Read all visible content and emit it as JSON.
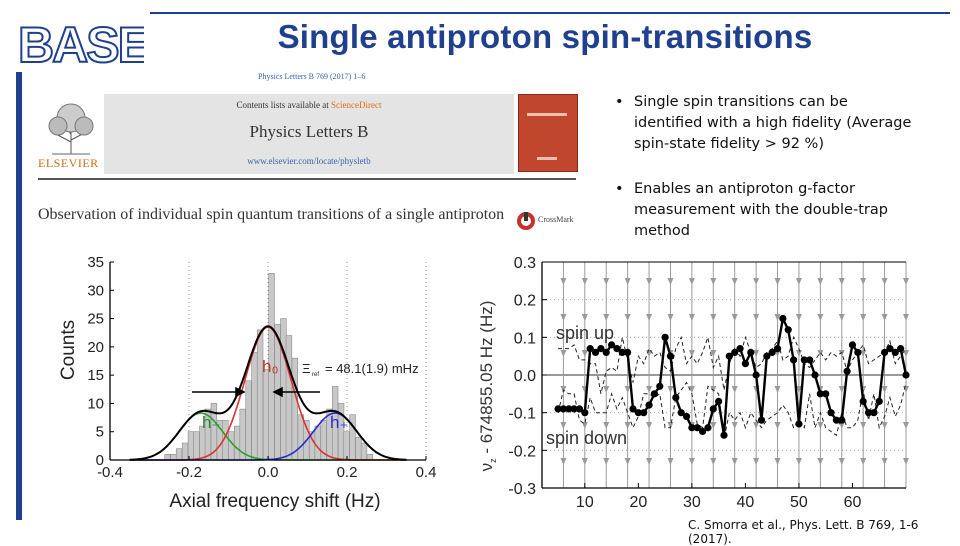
{
  "header": {
    "logo_text": "BASE",
    "title": "Single antiproton spin-transitions",
    "accent_color": "#1f3f8f"
  },
  "paper": {
    "journal_ref": "Physics Letters B 769 (2017) 1–6",
    "contents_prefix": "Contents lists available at ",
    "contents_link": "ScienceDirect",
    "journal_name": "Physics Letters B",
    "journal_url": "www.elsevier.com/locate/physletb",
    "publisher": "ELSEVIER",
    "title": "Observation of individual spin quantum transitions of a single antiproton",
    "crossmark": "CrossMark",
    "cover_icon": "journal-cover-icon",
    "crossmark_icon": "crossmark-icon"
  },
  "bullets": [
    {
      "symbol": "•",
      "text": "Single spin transitions can be identified with a high fidelity (Average spin-state fidelity > 92 %)"
    },
    {
      "symbol": "•",
      "text": "Enables an antiproton g-factor measurement with the double-trap method"
    }
  ],
  "citation": "C. Smorra et al., Phys. Lett. B 769, 1-6 (2017).",
  "chart_data": [
    {
      "type": "bar",
      "xlabel": "Axial frequency shift (Hz)",
      "ylabel": "Counts",
      "xlim": [
        -0.4,
        0.4
      ],
      "ylim": [
        0,
        35
      ],
      "xticks": [
        "-0.4",
        "-0.2",
        "0.0",
        "0.2",
        "0.4"
      ],
      "yticks": [
        "0",
        "5",
        "10",
        "15",
        "20",
        "25",
        "30",
        "35"
      ],
      "bar_width": 0.0146,
      "bins_x": [
        -0.254,
        -0.239,
        -0.225,
        -0.21,
        -0.195,
        -0.181,
        -0.166,
        -0.152,
        -0.137,
        -0.122,
        -0.108,
        -0.093,
        -0.078,
        -0.064,
        -0.049,
        -0.034,
        -0.02,
        -0.005,
        0.009,
        0.024,
        0.039,
        0.053,
        0.068,
        0.083,
        0.097,
        0.112,
        0.126,
        0.141,
        0.156,
        0.17,
        0.185,
        0.199,
        0.214,
        0.229,
        0.243,
        0.258
      ],
      "counts": [
        1,
        1,
        2,
        3,
        5,
        5,
        6,
        9,
        10,
        7,
        7,
        5,
        6,
        9,
        14,
        19,
        23,
        16,
        33,
        24,
        25,
        22,
        18,
        8,
        7,
        5,
        6,
        7,
        9,
        13,
        10,
        5,
        8,
        4,
        3,
        1
      ],
      "curves": [
        {
          "name": "h-",
          "color": "#2aa02a",
          "center": -0.17,
          "amp": 8.3,
          "sigma": 0.055
        },
        {
          "name": "h0",
          "color": "#e03030",
          "center": 0.0,
          "amp": 23.5,
          "sigma": 0.058
        },
        {
          "name": "h+",
          "color": "#2a2ad0",
          "center": 0.17,
          "amp": 8.3,
          "sigma": 0.055
        },
        {
          "name": "sum",
          "color": "#000000",
          "center": null,
          "amp": null,
          "sigma": null
        }
      ],
      "annotations": {
        "h0": "h₀",
        "hminus": "h₋",
        "hplus": "h₊",
        "xi_label": "Ξ",
        "xi_sub": "ref",
        "xi_value": "= 48.1(1.9) mHz"
      }
    },
    {
      "type": "line",
      "xlabel": "",
      "ylabel_prefix": "ν",
      "ylabel_sub": "z",
      "ylabel_rest": " - 674855.05 Hz  (Hz)",
      "xlim": [
        2,
        70
      ],
      "ylim": [
        -0.3,
        0.3
      ],
      "xticks": [
        "10",
        "20",
        "30",
        "40",
        "50",
        "60"
      ],
      "yticks": [
        "0.3",
        "0.2",
        "0.1",
        "0.0",
        "-0.1",
        "-0.2",
        "-0.3"
      ],
      "labels": {
        "spin_up": "spin up",
        "spin_down": "spin down"
      },
      "arrow_columns": [
        6,
        10,
        14,
        18,
        22,
        26,
        30,
        34,
        38,
        42,
        46,
        50,
        54,
        58,
        62,
        66,
        70
      ],
      "x": [
        5,
        6,
        7,
        8,
        9,
        10,
        11,
        12,
        13,
        14,
        15,
        16,
        17,
        18,
        19,
        20,
        21,
        22,
        23,
        24,
        25,
        26,
        27,
        28,
        29,
        30,
        31,
        32,
        33,
        34,
        35,
        36,
        37,
        38,
        39,
        40,
        41,
        42,
        43,
        44,
        45,
        46,
        47,
        48,
        49,
        50,
        51,
        52,
        53,
        54,
        55,
        56,
        57,
        58,
        59,
        60,
        61,
        62,
        63,
        64,
        65,
        66,
        67,
        68,
        69,
        70
      ],
      "y": [
        -0.09,
        -0.09,
        -0.09,
        -0.09,
        -0.09,
        -0.1,
        0.07,
        0.06,
        0.07,
        0.06,
        0.08,
        0.07,
        0.06,
        0.06,
        -0.09,
        -0.1,
        -0.1,
        -0.08,
        -0.05,
        -0.03,
        0.1,
        0.05,
        -0.06,
        -0.1,
        -0.11,
        -0.14,
        -0.14,
        -0.15,
        -0.14,
        -0.09,
        -0.07,
        -0.16,
        0.05,
        0.06,
        0.07,
        0.03,
        0.06,
        0.0,
        -0.12,
        0.05,
        0.06,
        0.07,
        0.15,
        0.12,
        0.04,
        -0.13,
        0.04,
        0.04,
        0.0,
        -0.05,
        -0.05,
        -0.1,
        -0.12,
        -0.12,
        0.01,
        0.08,
        0.06,
        -0.07,
        -0.1,
        -0.1,
        -0.07,
        0.06,
        0.07,
        0.06,
        0.07,
        0.0
      ],
      "upper_threshold": [
        0.07,
        0.07,
        0.07,
        0.08,
        0.04,
        0.04,
        0.03,
        0.03,
        -0.05,
        0.01,
        0.02,
        0.01,
        0.1,
        0.04,
        -0.02,
        0.05,
        0.03,
        0.07,
        0.05,
        0.06,
        0.02,
        0.01,
        0.07,
        0.1,
        0.03,
        0.05,
        0.03,
        0.06,
        0.1,
        0.02,
        0.05,
        -0.04,
        0.03,
        0.07,
        0.05,
        0.1,
        0.06,
        0.02,
        0.03,
        0.06,
        0.07,
        0.09,
        0.04,
        0.05,
        0.1,
        0.07,
        0.03,
        0.02,
        0.04,
        0.06,
        0.04,
        0.06,
        0.05,
        0.06,
        0.01,
        0.04,
        0.06,
        0.08,
        0.03,
        0.04,
        0.05,
        0.06,
        0.09,
        0.03,
        0.05,
        0.07
      ],
      "lower_threshold": [
        -0.1,
        -0.04,
        -0.05,
        -0.05,
        -0.12,
        -0.13,
        -0.06,
        -0.1,
        -0.1,
        -0.1,
        -0.05,
        -0.09,
        -0.06,
        -0.1,
        -0.14,
        -0.11,
        -0.05,
        -0.05,
        -0.06,
        -0.05,
        -0.14,
        -0.14,
        -0.06,
        -0.04,
        -0.02,
        -0.05,
        -0.13,
        -0.14,
        -0.03,
        -0.04,
        -0.05,
        -0.17,
        -0.1,
        -0.12,
        -0.1,
        -0.14,
        -0.1,
        -0.12,
        -0.14,
        -0.12,
        -0.11,
        -0.1,
        -0.08,
        -0.1,
        -0.14,
        -0.12,
        -0.14,
        -0.05,
        -0.14,
        -0.1,
        -0.14,
        -0.15,
        -0.16,
        -0.1,
        -0.14,
        -0.14,
        -0.12,
        -0.04,
        -0.12,
        -0.05,
        -0.14,
        -0.11,
        -0.06,
        -0.11,
        -0.08,
        -0.02
      ]
    }
  ]
}
